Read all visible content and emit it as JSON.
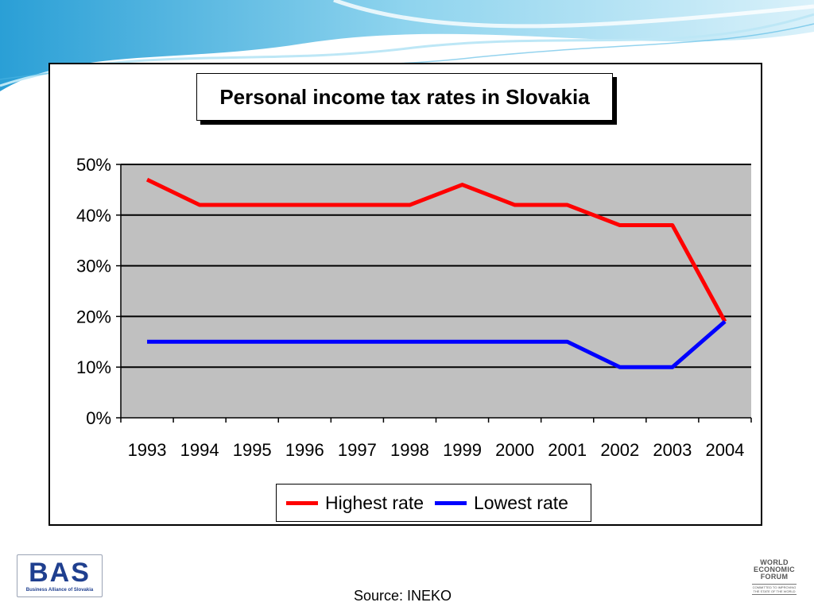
{
  "chart_data": {
    "type": "line",
    "title": "Personal income tax rates in Slovakia",
    "categories": [
      "1993",
      "1994",
      "1995",
      "1996",
      "1997",
      "1998",
      "1999",
      "2000",
      "2001",
      "2002",
      "2003",
      "2004"
    ],
    "series": [
      {
        "name": "Highest rate",
        "color": "#ff0000",
        "values": [
          47,
          42,
          42,
          42,
          42,
          42,
          46,
          42,
          42,
          38,
          38,
          19
        ]
      },
      {
        "name": "Lowest rate",
        "color": "#0000ff",
        "values": [
          15,
          15,
          15,
          15,
          15,
          15,
          15,
          15,
          15,
          10,
          10,
          19
        ]
      }
    ],
    "ylim": [
      0,
      50
    ],
    "yticks": [
      0,
      10,
      20,
      30,
      40,
      50
    ],
    "ytick_labels": [
      "0%",
      "10%",
      "20%",
      "30%",
      "40%",
      "50%"
    ],
    "grid": true,
    "plot_background": "#c0c0c0",
    "legend_position": "bottom"
  },
  "logos": {
    "bas": {
      "letters": "BAS",
      "subtitle": "Business Alliance of Slovakia"
    },
    "wef": {
      "lines": [
        "WORLD",
        "ECONOMIC",
        "FORUM"
      ],
      "tagline": "COMMITTED TO IMPROVING THE STATE OF THE WORLD"
    }
  },
  "source": "Source: INEKO"
}
